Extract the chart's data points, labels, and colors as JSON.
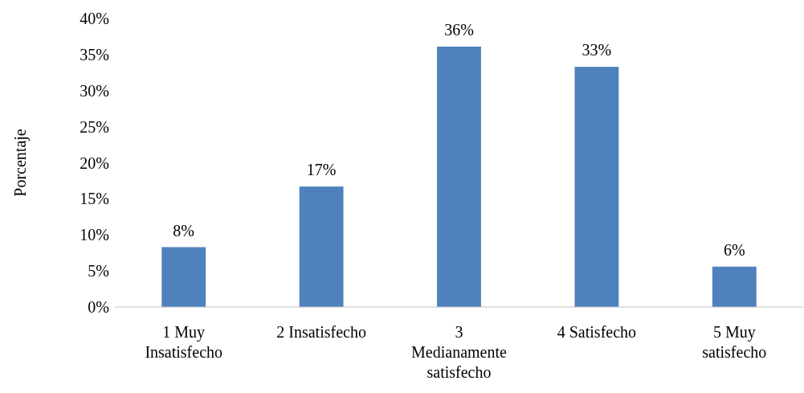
{
  "chart_data": {
    "type": "bar",
    "ylabel": "Porcentaje",
    "categories": [
      "1 Muy Insatisfecho",
      "2 Insatisfecho",
      "3 Medianamente satisfecho",
      "4 Satisfecho",
      "5 Muy satisfecho"
    ],
    "values": [
      8.3,
      16.7,
      36.1,
      33.3,
      5.6
    ],
    "value_labels": [
      "8%",
      "17%",
      "36%",
      "33%",
      "6%"
    ],
    "color": "#4f81bd",
    "ylim": [
      0,
      40
    ],
    "yticks": [
      {
        "value": 0,
        "label": "0%"
      },
      {
        "value": 5,
        "label": "5%"
      },
      {
        "value": 10,
        "label": "10%"
      },
      {
        "value": 15,
        "label": "15%"
      },
      {
        "value": 20,
        "label": "20%"
      },
      {
        "value": 25,
        "label": "25%"
      },
      {
        "value": 30,
        "label": "30%"
      },
      {
        "value": 35,
        "label": "35%"
      },
      {
        "value": 40,
        "label": "40%"
      }
    ],
    "grid": false
  }
}
